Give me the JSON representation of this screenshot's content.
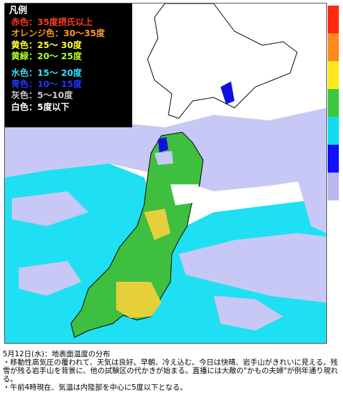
{
  "legend": {
    "title": "凡例",
    "items": [
      {
        "text": "赤色：35度摂氏以上",
        "color": "#ff3b1e"
      },
      {
        "text": "オレンジ色：30〜35度",
        "color": "#ff9a1e"
      },
      {
        "text": "黄色：25〜 30度",
        "color": "#ffff33"
      },
      {
        "text": "黄緑：20〜 25度",
        "color": "#b4ff2a"
      },
      {
        "text": "水色：15〜 20度",
        "color": "#33ddff"
      },
      {
        "text": "青色：10〜 15度",
        "color": "#2233ff"
      },
      {
        "text": "灰色：5〜10度",
        "color": "#c8c8c8"
      },
      {
        "text": "白色：5度以下",
        "color": "#ffffff"
      }
    ]
  },
  "scale_colors": [
    "#ff2a0e",
    "#ff8a1e",
    "#ffe81e",
    "#3ec83e",
    "#11ddf0",
    "#1010ff",
    "#b8b8ee",
    "#ffffff",
    "#ffffff",
    "#ffffff",
    "#ffffff",
    "#ffffff"
  ],
  "map_colors": {
    "sea_warm": "#1ee0f2",
    "cloud": "#c8c8f6",
    "land_green": "#3fbf3f",
    "land_yellow": "#e6d03a",
    "snow": "#ffffff",
    "dark_blue": "#1010e0"
  },
  "caption": {
    "line1": "5月12日(水)：地表面温度の分布",
    "line2": "・移動性高気圧の覆われて、天気は良好。早朝、冷え込む。今日は快晴、岩手山がきれいに見える。残雪が残る岩手山を背景に、他の試験区の代かきが始まる。直播には大敵の\"かもの夫婦\"が例年通り現れる。",
    "line3": "・午前4時現在、気温は内陸部を中心に5度以下となる。"
  }
}
